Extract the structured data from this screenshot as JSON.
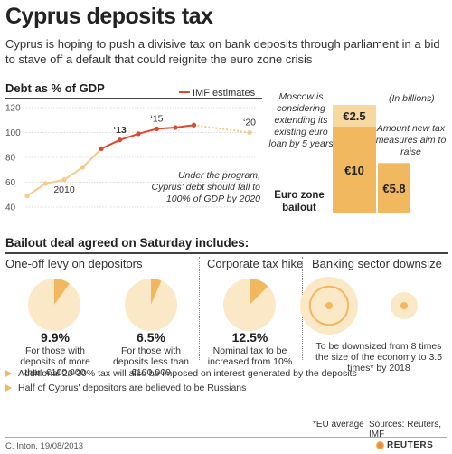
{
  "title": "Cyprus deposits tax",
  "subtitle": "Cyprus is hoping to push a divisive tax on bank deposits through parliament in a bid to stave off a default that could reignite the euro zone crisis",
  "colors": {
    "actual": "#f5c98a",
    "imf": "#e0472f",
    "imf_forecast": "#f5c98a",
    "bar_light": "#f7d9a0",
    "bar_dark": "#f1b85f",
    "circle_light": "#fbe8c6",
    "circle_dark": "#f1b85f",
    "bullet": "#f1b85f"
  },
  "chart_data": [
    {
      "type": "line",
      "title": "Debt as % of GDP",
      "legend": "IMF estimates",
      "legend_position": "top-right",
      "x": [
        2008,
        2009,
        2010,
        2011,
        2012,
        2013,
        2014,
        2015,
        2016,
        2017,
        2018,
        2019,
        2020
      ],
      "series": [
        {
          "name": "",
          "x": [
            2008,
            2009,
            2010,
            2011,
            2012
          ],
          "values": [
            49,
            59,
            62,
            72,
            87
          ]
        },
        {
          "name": "IMF estimates",
          "x": [
            2012,
            2013,
            2014,
            2015,
            2016,
            2017
          ],
          "values": [
            87,
            94,
            99,
            103,
            104,
            106
          ]
        },
        {
          "name": "",
          "x": [
            2017,
            2018,
            2019,
            2020
          ],
          "values": [
            106,
            104,
            102,
            100
          ]
        }
      ],
      "yticks": [
        40,
        60,
        80,
        100,
        120
      ],
      "ylim": [
        40,
        120
      ],
      "xlim": [
        2008,
        2020
      ],
      "x_labels": [
        {
          "x": 2010,
          "label": "2010"
        },
        {
          "x": 2013,
          "label": "‘13"
        },
        {
          "x": 2015,
          "label": "‘15"
        },
        {
          "x": 2020,
          "label": "‘20"
        }
      ],
      "grid": true,
      "annotation": "Under the program, Cyprus' debt should fall to 100% of GDP by 2020"
    },
    {
      "type": "bar",
      "unit_note": "(In billions)",
      "categories": [
        "Euro zone bailout",
        "Amount new tax measures aim to raise"
      ],
      "stacked_values": [
        [
          10,
          2.5
        ],
        [
          5.8
        ]
      ],
      "value_labels": [
        "€10",
        "€2.5",
        "€5.8"
      ],
      "annotations": {
        "moscow": "Moscow is considering extending its existing euro loan by 5 years",
        "euro_zone": "Euro zone bailout",
        "new_tax": "Amount new tax measures aim to raise"
      }
    },
    {
      "type": "pie",
      "title": "One-off levy on depositors",
      "value": 9.9,
      "value_label": "9.9%",
      "caption": "For those with deposits of more than €100,000"
    },
    {
      "type": "pie",
      "value": 6.5,
      "value_label": "6.5%",
      "caption": "For those with deposits less than €100,000"
    },
    {
      "type": "pie",
      "title": "Corporate tax hike",
      "value": 12.5,
      "value_label": "12.5%",
      "caption": "Nominal tax to be increased from 10%"
    }
  ],
  "bailout": {
    "heading": "Bailout deal agreed on Saturday includes:",
    "banking_title": "Banking sector downsize",
    "banking_caption": "To be downsized from 8 times the size of the economy to 3.5 times* by 2018",
    "banking_ratio_from": 8,
    "banking_ratio_to": 3.5,
    "bullets": [
      "Additional 20-30% tax will also be imposed on interest generated by the deposits",
      "Half of Cyprus' depositors are believed to be Russians"
    ]
  },
  "footer": {
    "eu_note": "*EU average",
    "sources": "Sources: Reuters, IMF",
    "credit": "C. Inton, 19/08/2013",
    "brand": "REUTERS"
  }
}
